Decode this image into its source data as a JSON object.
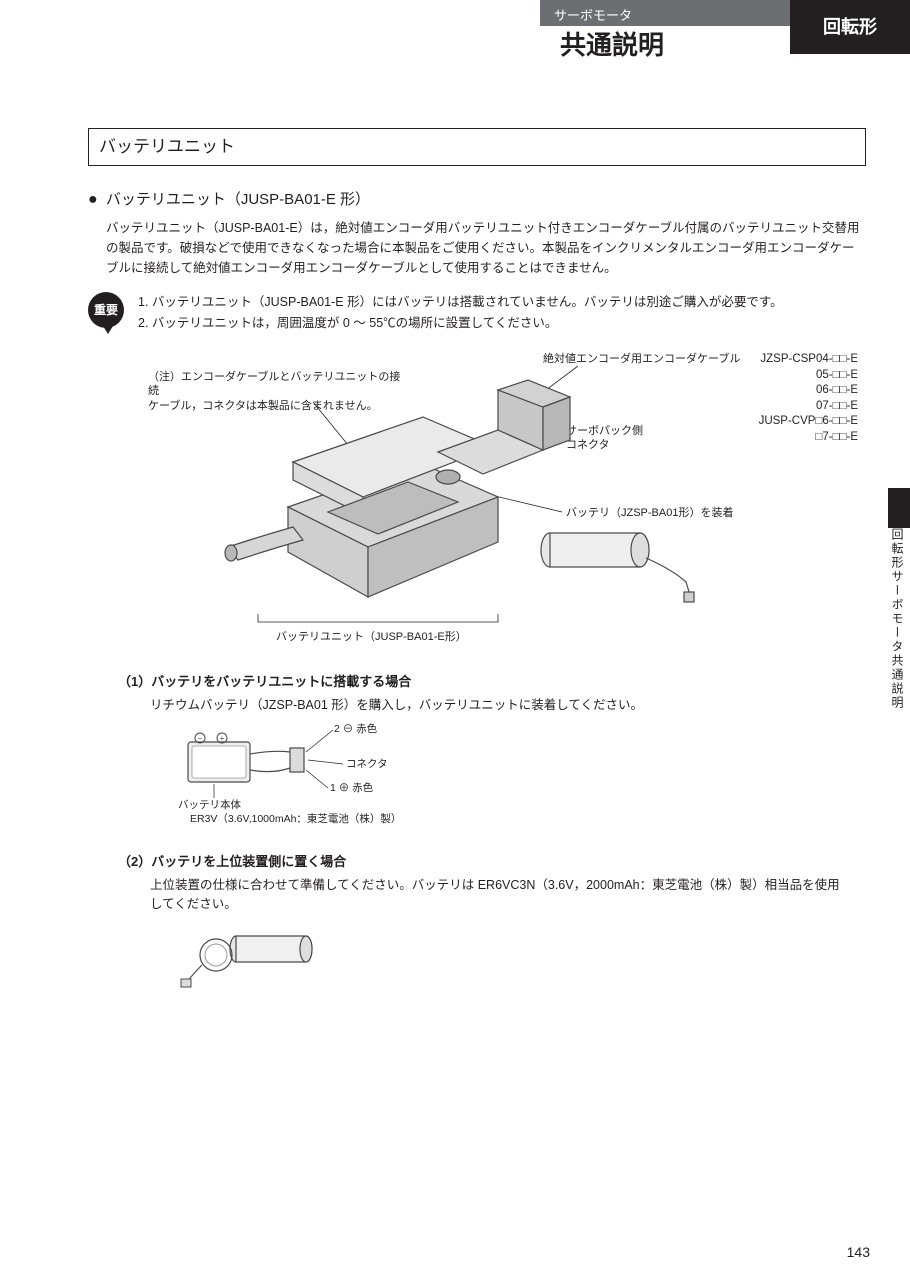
{
  "header": {
    "category_gray": "サーボモータ",
    "title_big": "共通説明",
    "corner_black": "回転形"
  },
  "side_tab": "回転形サーボモータ共通説明",
  "page_number": "143",
  "section_title": "バッテリユニット",
  "bullet": {
    "heading": "バッテリユニット（JUSP-BA01-E 形）",
    "body": "バッテリユニット（JUSP-BA01-E）は，絶対値エンコーダ用バッテリユニット付きエンコーダケーブル付属のバッテリユニット交替用の製品です。破損などで使用できなくなった場合に本製品をご使用ください。本製品をインクリメンタルエンコーダ用エンコーダケーブルに接続して絶対値エンコーダ用エンコーダケーブルとして使用することはできません。"
  },
  "important": {
    "badge": "重要",
    "line1": "1. バッテリユニット（JUSP-BA01-E 形）にはバッテリは搭載されていません。バッテリは別途ご購入が必要です。",
    "line2": "2. バッテリユニットは，周囲温度が 0 ～ 55℃の場所に設置してください。"
  },
  "diagram": {
    "note_left": "（注）エンコーダケーブルとバッテリユニットの接続\nケーブル，コネクタは本製品に含まれません。",
    "label_top": "絶対値エンコーダ用エンコーダケーブル",
    "label_servo": "サーボパック側\nコネクタ",
    "label_battery": "バッテリ（JZSP-BA01形）を装着",
    "label_unit": "バッテリユニット（JUSP-BA01-E形）",
    "models_prefix": "JZSP-CSP04-□□-E",
    "models": [
      "05-□□-E",
      "06-□□-E",
      "07-□□-E"
    ],
    "models_cvp_prefix": "JUSP-CVP□6-□□-E",
    "models_cvp": [
      "□7-□□-E"
    ]
  },
  "sub1": {
    "heading": "（1）バッテリをバッテリユニットに搭載する場合",
    "body": "リチウムバッテリ（JZSP-BA01 形）を購入し，バッテリユニットに装着してください。",
    "lbl_2red": "2 ⊖ 赤色",
    "lbl_connector": "コネクタ",
    "lbl_1red": "1 ⊕ 赤色",
    "lbl_body": "バッテリ本体",
    "lbl_spec": "ER3V（3.6V,1000mAh：東芝電池（株）製）"
  },
  "sub2": {
    "heading": "（2）バッテリを上位装置側に置く場合",
    "body": "上位装置の仕様に合わせて準備してください。バッテリは ER6VC3N（3.6V，2000mAh：東芝電池（株）製）相当品を使用してください。"
  },
  "colors": {
    "black": "#231f20",
    "gray_header": "#6d6e71",
    "light_gray": "#bdbdbd",
    "outline": "#4a4a4a"
  }
}
